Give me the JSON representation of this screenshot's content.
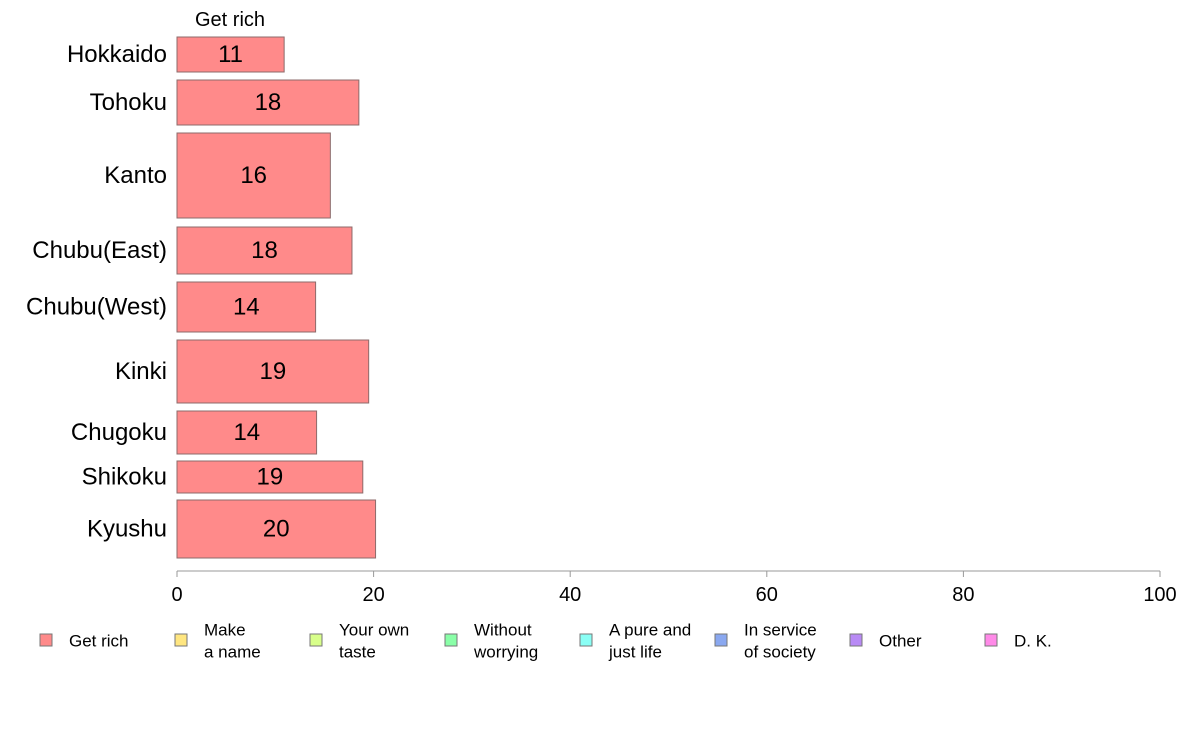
{
  "chart_data": {
    "type": "bar",
    "orientation": "horizontal",
    "series_title": "Get rich",
    "categories": [
      "Hokkaido",
      "Tohoku",
      "Kanto",
      "Chubu(East)",
      "Chubu(West)",
      "Kinki",
      "Chugoku",
      "Shikoku",
      "Kyushu"
    ],
    "series": [
      {
        "name": "Get rich",
        "color": "#FF8A8A",
        "values": [
          11,
          18,
          16,
          18,
          14,
          19,
          14,
          19,
          20
        ],
        "display_values": [
          10.9,
          18.5,
          15.6,
          17.8,
          14.1,
          19.5,
          14.2,
          18.9,
          20.2
        ]
      }
    ],
    "xlim": [
      0,
      100
    ],
    "xticks": [
      0,
      20,
      40,
      60,
      80,
      100
    ],
    "grid": false,
    "legend_position": "bottom",
    "legend": [
      {
        "lines": [
          "Get rich"
        ],
        "color": "#FF8A8A"
      },
      {
        "lines": [
          "Make",
          "a name"
        ],
        "color": "#FFE680"
      },
      {
        "lines": [
          "Your own",
          "taste"
        ],
        "color": "#D8FF8A"
      },
      {
        "lines": [
          "Without",
          "worrying"
        ],
        "color": "#8AFFA8"
      },
      {
        "lines": [
          "A pure and",
          "just life"
        ],
        "color": "#8AFFF5"
      },
      {
        "lines": [
          "In service",
          "of society"
        ],
        "color": "#8AA8F0"
      },
      {
        "lines": [
          "Other"
        ],
        "color": "#B88AF5"
      },
      {
        "lines": [
          "D. K."
        ],
        "color": "#FF8AE8"
      }
    ]
  }
}
